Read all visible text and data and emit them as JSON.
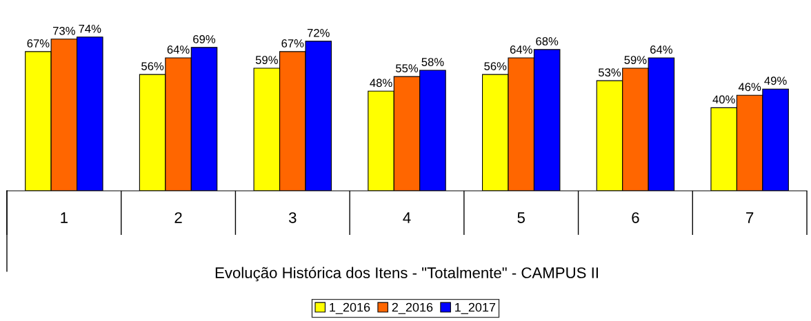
{
  "chart_data": {
    "type": "bar",
    "xlabel": "Evolução Histórica dos Itens - \"Totalmente\" - CAMPUS II",
    "categories": [
      "1",
      "2",
      "3",
      "4",
      "5",
      "6",
      "7"
    ],
    "series": [
      {
        "name": "1_2016",
        "color": "#ffff00",
        "values": [
          67,
          56,
          59,
          48,
          56,
          53,
          40
        ],
        "value_labels": [
          "67%",
          "56%",
          "59%",
          "48%",
          "56%",
          "53%",
          "40%"
        ]
      },
      {
        "name": "2_2016",
        "color": "#ff6600",
        "values": [
          73,
          64,
          67,
          55,
          64,
          59,
          46
        ],
        "value_labels": [
          "73%",
          "64%",
          "67%",
          "55%",
          "64%",
          "59%",
          "46%"
        ]
      },
      {
        "name": "1_2017",
        "color": "#0000ff",
        "values": [
          74,
          69,
          72,
          58,
          68,
          64,
          49
        ],
        "value_labels": [
          "74%",
          "69%",
          "72%",
          "58%",
          "68%",
          "64%",
          "49%"
        ]
      }
    ],
    "legend": "bottom",
    "grid": false
  }
}
